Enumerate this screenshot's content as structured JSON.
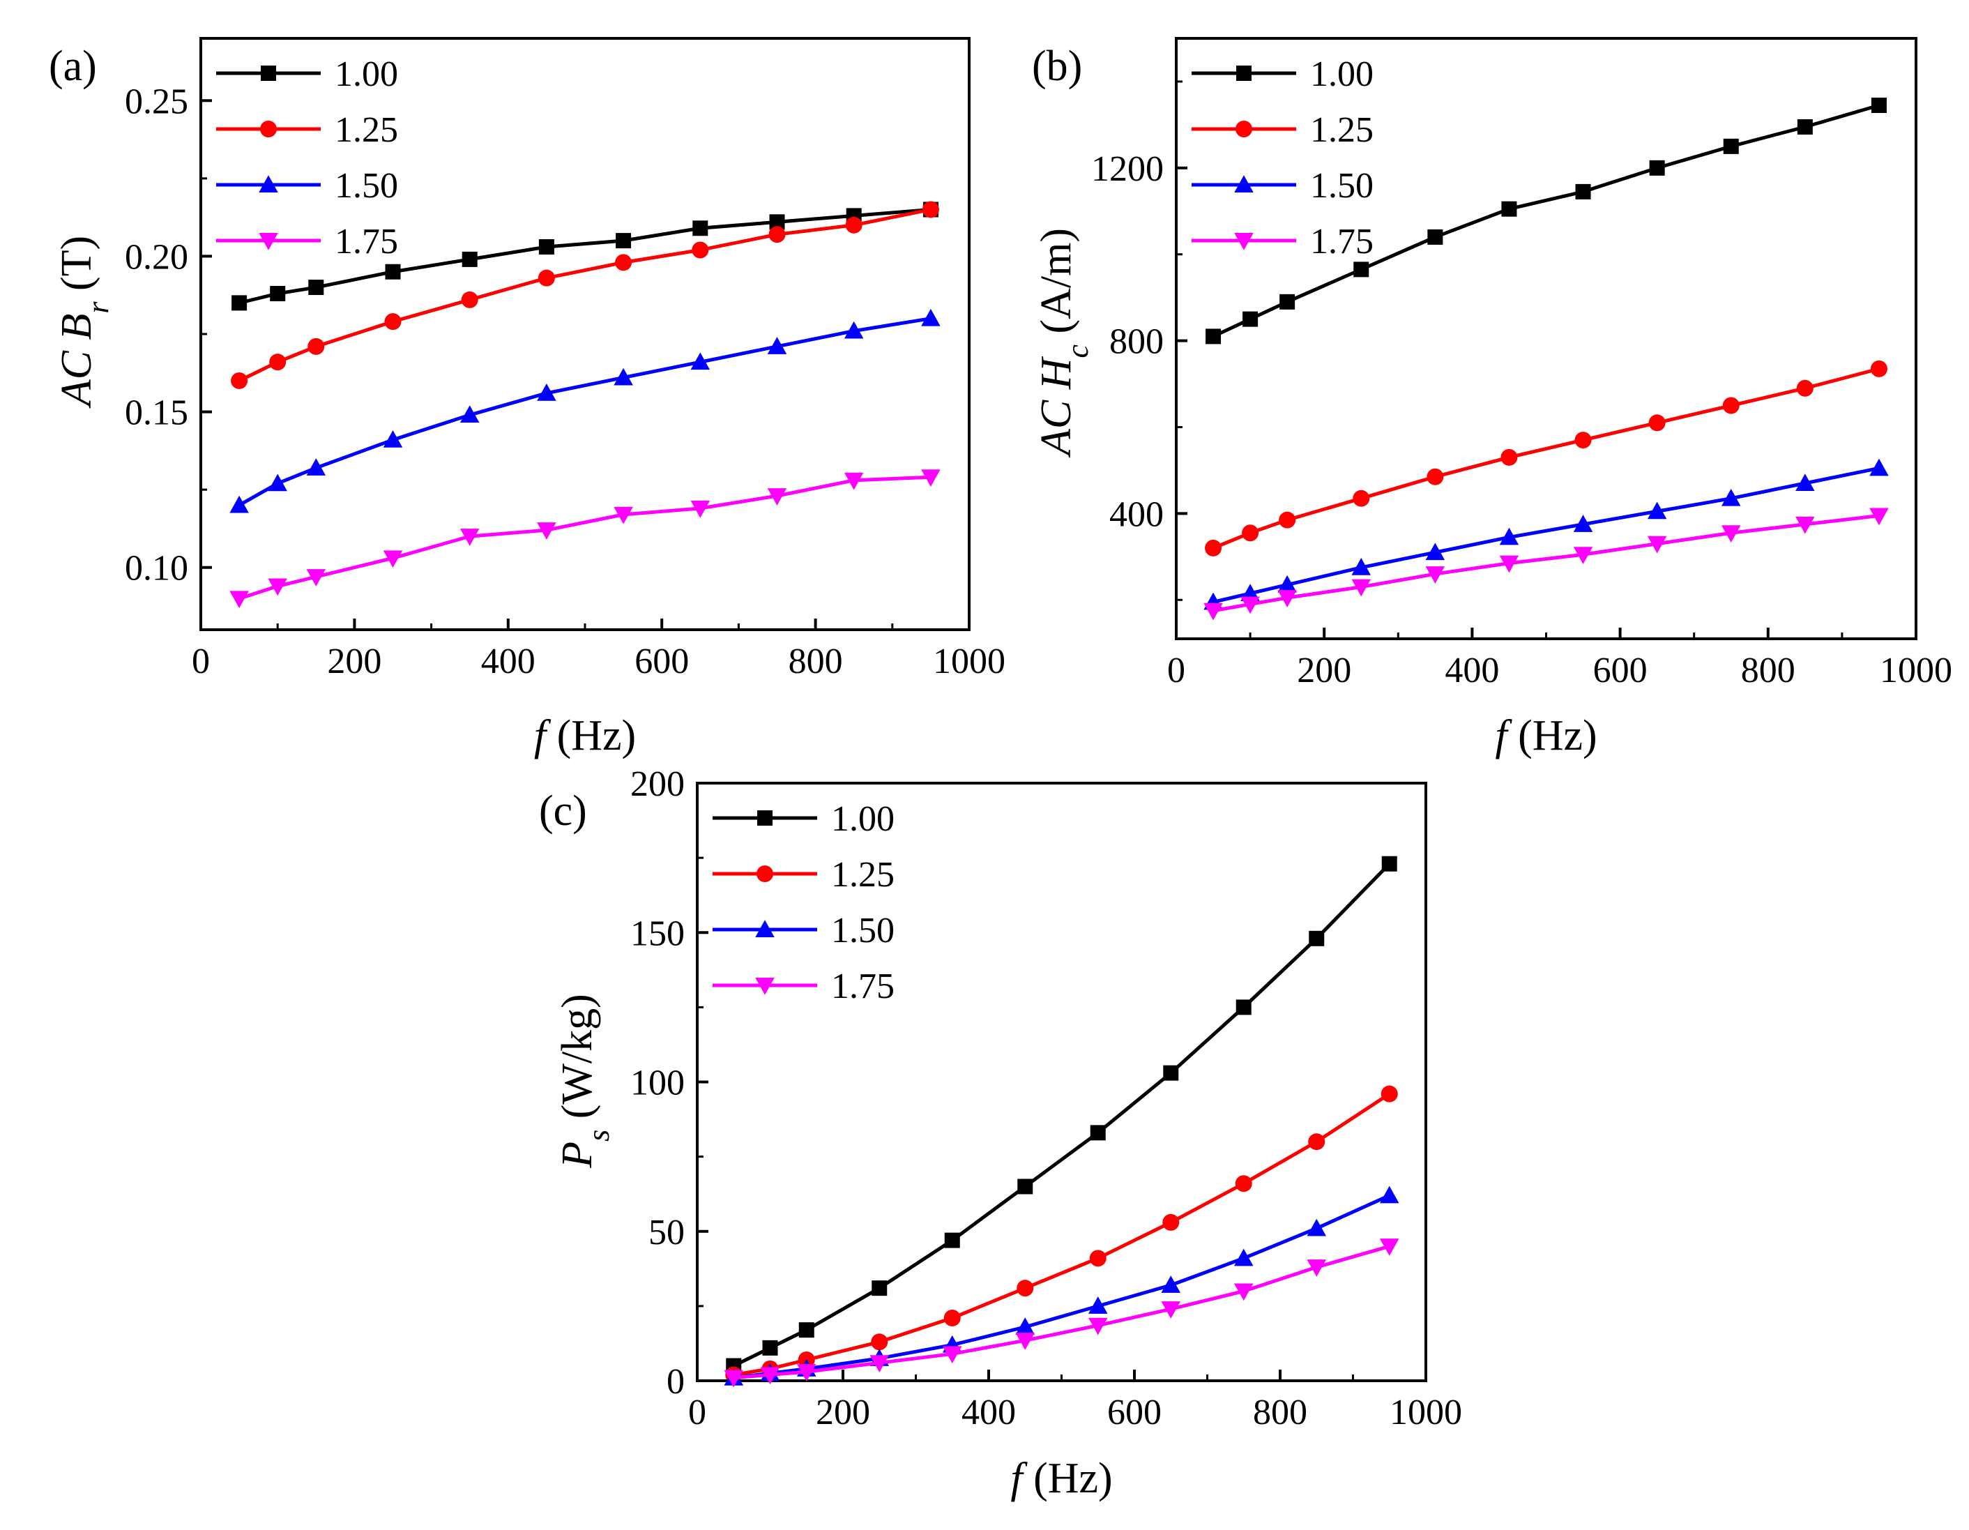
{
  "chart_data": [
    {
      "type": "line",
      "panel_label": "(a)",
      "xlabel": {
        "symbol": "f",
        "unit": "(Hz)"
      },
      "ylabel": {
        "prefix": "AC",
        "symbol": "B",
        "subscript": "r",
        "unit": "(T)"
      },
      "xlim": [
        0,
        1000
      ],
      "ylim": [
        0.08,
        0.27
      ],
      "xticks": [
        0,
        200,
        400,
        600,
        800,
        1000
      ],
      "yticks": [
        0.1,
        0.15,
        0.2,
        0.25
      ],
      "ytick_labels": [
        "0.10",
        "0.15",
        "0.20",
        "0.25"
      ],
      "grid": false,
      "legend_position": "top-left",
      "x": [
        50,
        100,
        150,
        250,
        350,
        450,
        550,
        650,
        750,
        850,
        950
      ],
      "series": [
        {
          "name": "1.00",
          "color": "#000000",
          "marker": "square",
          "values": [
            0.185,
            0.188,
            0.19,
            0.195,
            0.199,
            0.203,
            0.205,
            0.209,
            0.211,
            0.213,
            0.215
          ]
        },
        {
          "name": "1.25",
          "color": "#ff0000",
          "marker": "circle",
          "values": [
            0.16,
            0.166,
            0.171,
            0.179,
            0.186,
            0.193,
            0.198,
            0.202,
            0.207,
            0.21,
            0.215
          ]
        },
        {
          "name": "1.50",
          "color": "#0000ff",
          "marker": "triangle-up",
          "values": [
            0.12,
            0.127,
            0.132,
            0.141,
            0.149,
            0.156,
            0.161,
            0.166,
            0.171,
            0.176,
            0.18
          ]
        },
        {
          "name": "1.75",
          "color": "#ff00ff",
          "marker": "triangle-down",
          "values": [
            0.09,
            0.094,
            0.097,
            0.103,
            0.11,
            0.112,
            0.117,
            0.119,
            0.123,
            0.128,
            0.129
          ]
        }
      ]
    },
    {
      "type": "line",
      "panel_label": "(b)",
      "xlabel": {
        "symbol": "f",
        "unit": "(Hz)"
      },
      "ylabel": {
        "prefix": "AC",
        "symbol": "H",
        "subscript": "c",
        "unit": "(A/m)"
      },
      "xlim": [
        0,
        1000
      ],
      "ylim": [
        110,
        1500
      ],
      "xticks": [
        0,
        200,
        400,
        600,
        800,
        1000
      ],
      "yticks": [
        400,
        800,
        1200
      ],
      "ytick_labels": [
        "400",
        "800",
        "1200"
      ],
      "grid": false,
      "legend_position": "top-left",
      "x": [
        50,
        100,
        150,
        250,
        350,
        450,
        550,
        650,
        750,
        850,
        950
      ],
      "series": [
        {
          "name": "1.00",
          "color": "#000000",
          "marker": "square",
          "values": [
            810,
            850,
            890,
            965,
            1040,
            1105,
            1145,
            1200,
            1250,
            1295,
            1345
          ]
        },
        {
          "name": "1.25",
          "color": "#ff0000",
          "marker": "circle",
          "values": [
            320,
            355,
            385,
            435,
            485,
            530,
            570,
            610,
            650,
            690,
            735
          ]
        },
        {
          "name": "1.50",
          "color": "#0000ff",
          "marker": "triangle-up",
          "values": [
            195,
            215,
            235,
            275,
            310,
            345,
            375,
            405,
            435,
            470,
            505
          ]
        },
        {
          "name": "1.75",
          "color": "#ff00ff",
          "marker": "triangle-down",
          "values": [
            175,
            190,
            205,
            230,
            260,
            285,
            305,
            330,
            355,
            375,
            395
          ]
        }
      ]
    },
    {
      "type": "line",
      "panel_label": "(c)",
      "xlabel": {
        "symbol": "f",
        "unit": "(Hz)"
      },
      "ylabel": {
        "prefix": "",
        "symbol": "P",
        "subscript": "s",
        "unit": "(W/kg)"
      },
      "xlim": [
        0,
        1000
      ],
      "ylim": [
        0,
        200
      ],
      "xticks": [
        0,
        200,
        400,
        600,
        800,
        1000
      ],
      "yticks": [
        0,
        50,
        100,
        150,
        200
      ],
      "ytick_labels": [
        "0",
        "50",
        "100",
        "150",
        "200"
      ],
      "grid": false,
      "legend_position": "top-left",
      "x": [
        50,
        100,
        150,
        250,
        350,
        450,
        550,
        650,
        750,
        850,
        950
      ],
      "series": [
        {
          "name": "1.00",
          "color": "#000000",
          "marker": "square",
          "values": [
            5,
            11,
            17,
            31,
            47,
            65,
            83,
            103,
            125,
            148,
            173
          ]
        },
        {
          "name": "1.25",
          "color": "#ff0000",
          "marker": "circle",
          "values": [
            2,
            4,
            7,
            13,
            21,
            31,
            41,
            53,
            66,
            80,
            96
          ]
        },
        {
          "name": "1.50",
          "color": "#0000ff",
          "marker": "triangle-up",
          "values": [
            1,
            2.5,
            4,
            7.5,
            12,
            18,
            25,
            32,
            41,
            51,
            62
          ]
        },
        {
          "name": "1.75",
          "color": "#ff00ff",
          "marker": "triangle-down",
          "values": [
            1,
            2,
            3,
            6,
            9,
            13.5,
            18.5,
            24,
            30,
            38,
            45
          ]
        }
      ]
    }
  ]
}
